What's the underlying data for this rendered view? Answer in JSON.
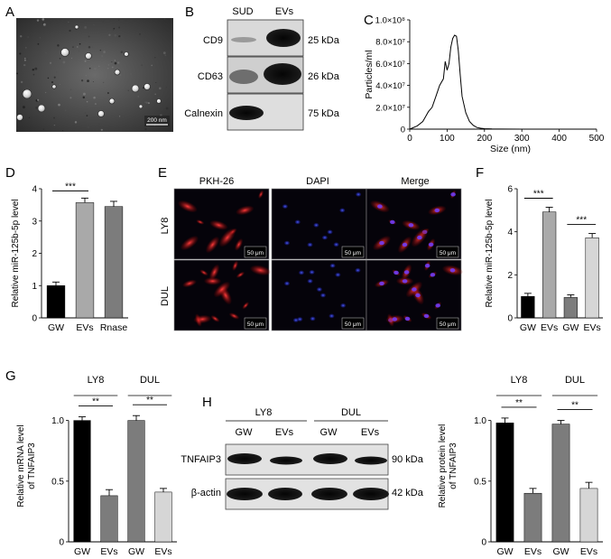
{
  "panel_letters": {
    "A": "A",
    "B": "B",
    "C": "C",
    "D": "D",
    "E": "E",
    "F": "F",
    "G": "G",
    "H": "H"
  },
  "panelA": {
    "scale_bar": "200 nm"
  },
  "panelB": {
    "columns": [
      "SUD",
      "EVs"
    ],
    "rows": [
      {
        "label": "CD9",
        "size": "25 kDa"
      },
      {
        "label": "CD63",
        "size": "26 kDa"
      },
      {
        "label": "Calnexin",
        "size": "75 kDa"
      }
    ]
  },
  "panelE": {
    "columns": [
      "PKH-26",
      "DAPI",
      "Merge"
    ],
    "rows": [
      "LY8",
      "DUL"
    ],
    "scale_bar": "50 μm"
  },
  "panelH": {
    "groups": [
      "LY8",
      "DUL"
    ],
    "lanes": [
      "GW",
      "EVs",
      "GW",
      "EVs"
    ],
    "rows": [
      {
        "label": "TNFAIP3",
        "size": "90 kDa"
      },
      {
        "label": "β-actin",
        "size": "42 kDa"
      }
    ]
  },
  "chart_data": [
    {
      "id": "C",
      "type": "line",
      "xlabel": "Size (nm)",
      "ylabel": "Particles/ml",
      "xlim": [
        0,
        500
      ],
      "ylim": [
        0,
        10
      ],
      "xticks": [
        "0",
        "100",
        "200",
        "300",
        "400",
        "500"
      ],
      "yticks": [
        "0",
        "2.0×10⁷",
        "4.0×10⁷",
        "6.0×10⁷",
        "8.0×10⁷",
        "1.0×10⁸"
      ],
      "x": [
        0,
        20,
        35,
        50,
        60,
        70,
        80,
        90,
        95,
        100,
        105,
        110,
        115,
        120,
        125,
        130,
        135,
        140,
        150,
        160,
        170,
        180,
        190,
        200,
        220,
        240,
        300,
        400,
        500
      ],
      "y": [
        0,
        0.3,
        0.7,
        1.6,
        2.0,
        3.0,
        4.0,
        4.6,
        6.2,
        5.4,
        6.0,
        7.5,
        8.3,
        8.6,
        8.5,
        7.2,
        5.0,
        3.0,
        1.5,
        0.7,
        0.35,
        0.15,
        0.08,
        0.04,
        0.02,
        0.01,
        0,
        0,
        0
      ]
    },
    {
      "id": "D",
      "type": "bar",
      "ylabel": "Relative miR-125b-5p level",
      "ylim": [
        0,
        4
      ],
      "yticks": [
        "0",
        "1",
        "2",
        "3",
        "4"
      ],
      "categories": [
        "GW",
        "EVs",
        "Rnase"
      ],
      "values": [
        1.0,
        3.57,
        3.45
      ],
      "errors": [
        0.11,
        0.14,
        0.16
      ],
      "colors": [
        "#000000",
        "#a9a9a9",
        "#7c7c7c"
      ],
      "significance": [
        {
          "from": 0,
          "to": 1,
          "label": "***"
        }
      ]
    },
    {
      "id": "F",
      "type": "bar",
      "ylabel": "Relative miR-125b-5p level",
      "ylim": [
        0,
        6
      ],
      "yticks": [
        "0",
        "2",
        "4",
        "6"
      ],
      "categories": [
        "GW",
        "EVs",
        "GW",
        "EVs"
      ],
      "values": [
        1.0,
        4.92,
        0.95,
        3.72
      ],
      "errors": [
        0.14,
        0.22,
        0.12,
        0.2
      ],
      "colors": [
        "#000000",
        "#a9a9a9",
        "#7c7c7c",
        "#d6d6d6"
      ],
      "significance": [
        {
          "from": 0,
          "to": 1,
          "label": "***"
        },
        {
          "from": 2,
          "to": 3,
          "label": "***"
        }
      ]
    },
    {
      "id": "G",
      "type": "bar",
      "ylabel": "Relative mRNA level of TNFAIP3",
      "ylim": [
        0,
        1.25
      ],
      "yticks": [
        "0",
        "0.5",
        "1.0"
      ],
      "groups": [
        "LY8",
        "DUL"
      ],
      "categories": [
        "GW",
        "EVs",
        "GW",
        "EVs"
      ],
      "values": [
        1.0,
        0.38,
        1.0,
        0.41
      ],
      "errors": [
        0.03,
        0.05,
        0.04,
        0.03
      ],
      "colors": [
        "#000000",
        "#7c7c7c",
        "#7c7c7c",
        "#d6d6d6"
      ],
      "significance": [
        {
          "from": 0,
          "to": 1,
          "label": "**"
        },
        {
          "from": 2,
          "to": 3,
          "label": "**"
        }
      ]
    },
    {
      "id": "H2",
      "type": "bar",
      "ylabel": "Relative protein level of TNFAIP3",
      "ylim": [
        0,
        1.25
      ],
      "yticks": [
        "0",
        "0.5",
        "1.0"
      ],
      "groups": [
        "LY8",
        "DUL"
      ],
      "categories": [
        "GW",
        "EVs",
        "GW",
        "EVs"
      ],
      "values": [
        0.98,
        0.4,
        0.97,
        0.44
      ],
      "errors": [
        0.04,
        0.04,
        0.03,
        0.05
      ],
      "colors": [
        "#000000",
        "#7c7c7c",
        "#7c7c7c",
        "#d6d6d6"
      ],
      "significance": [
        {
          "from": 0,
          "to": 1,
          "label": "**"
        },
        {
          "from": 2,
          "to": 3,
          "label": "**"
        }
      ]
    }
  ]
}
